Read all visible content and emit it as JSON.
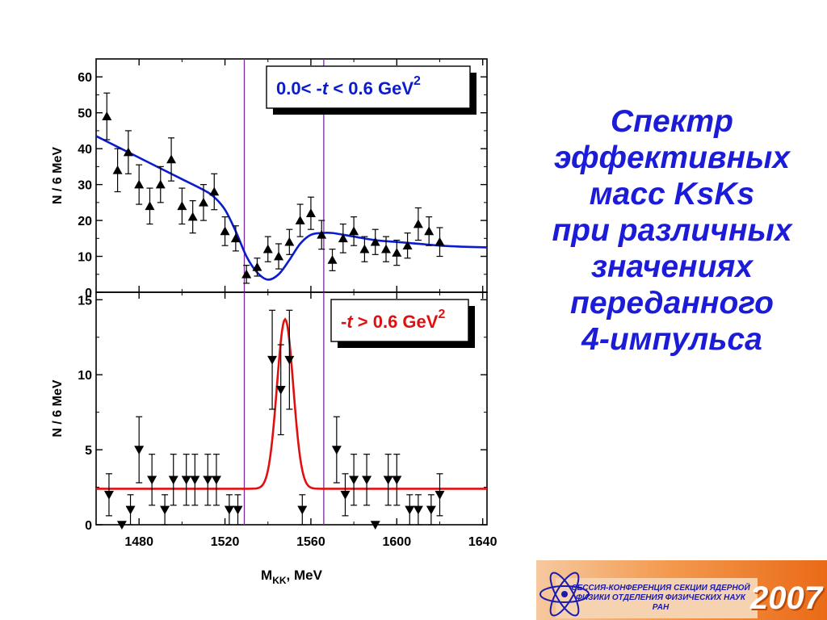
{
  "chart_data": [
    {
      "type": "scatter",
      "panel": "top",
      "title": "",
      "box_label": {
        "prefix": "0.0< -",
        "t": "t",
        "suffix": " < 0.6 GeV",
        "sup": "2"
      },
      "xlabel": "",
      "ylabel": "N / 6 MeV",
      "xlim": [
        1460,
        1642
      ],
      "ylim": [
        0,
        65
      ],
      "yticks": [
        "0",
        "10",
        "20",
        "30",
        "40",
        "50",
        "60"
      ],
      "vertical_lines": [
        1529,
        1566
      ],
      "marker": "triangle-up",
      "fit_color": "#0a1ccc",
      "points": [
        {
          "x": 1465,
          "y": 49,
          "err": 6.5
        },
        {
          "x": 1470,
          "y": 34,
          "err": 6
        },
        {
          "x": 1475,
          "y": 39,
          "err": 6
        },
        {
          "x": 1480,
          "y": 30,
          "err": 5.5
        },
        {
          "x": 1485,
          "y": 24,
          "err": 5
        },
        {
          "x": 1490,
          "y": 30,
          "err": 5
        },
        {
          "x": 1495,
          "y": 37,
          "err": 6
        },
        {
          "x": 1500,
          "y": 24,
          "err": 5
        },
        {
          "x": 1505,
          "y": 21,
          "err": 4.5
        },
        {
          "x": 1510,
          "y": 25,
          "err": 5
        },
        {
          "x": 1515,
          "y": 28,
          "err": 5
        },
        {
          "x": 1520,
          "y": 17,
          "err": 4
        },
        {
          "x": 1525,
          "y": 15,
          "err": 3.5
        },
        {
          "x": 1530,
          "y": 5,
          "err": 2.5
        },
        {
          "x": 1535,
          "y": 7,
          "err": 2.5
        },
        {
          "x": 1540,
          "y": 12,
          "err": 3.5
        },
        {
          "x": 1545,
          "y": 10,
          "err": 3.5
        },
        {
          "x": 1550,
          "y": 14,
          "err": 3.5
        },
        {
          "x": 1555,
          "y": 20,
          "err": 4.5
        },
        {
          "x": 1560,
          "y": 22,
          "err": 4.5
        },
        {
          "x": 1565,
          "y": 16,
          "err": 4
        },
        {
          "x": 1570,
          "y": 9,
          "err": 3
        },
        {
          "x": 1575,
          "y": 15,
          "err": 4
        },
        {
          "x": 1580,
          "y": 17,
          "err": 4
        },
        {
          "x": 1585,
          "y": 12,
          "err": 3.5
        },
        {
          "x": 1590,
          "y": 14,
          "err": 3.5
        },
        {
          "x": 1595,
          "y": 12,
          "err": 3.5
        },
        {
          "x": 1600,
          "y": 11,
          "err": 3.5
        },
        {
          "x": 1605,
          "y": 13,
          "err": 3.5
        },
        {
          "x": 1610,
          "y": 19,
          "err": 4.5
        },
        {
          "x": 1615,
          "y": 17,
          "err": 4
        },
        {
          "x": 1620,
          "y": 14,
          "err": 4
        }
      ],
      "fit": [
        [
          1460,
          43.5
        ],
        [
          1470,
          40.5
        ],
        [
          1480,
          37.5
        ],
        [
          1490,
          34.5
        ],
        [
          1500,
          31.5
        ],
        [
          1510,
          28.5
        ],
        [
          1515,
          26.5
        ],
        [
          1520,
          23
        ],
        [
          1525,
          17
        ],
        [
          1530,
          10
        ],
        [
          1535,
          5.5
        ],
        [
          1540,
          3.5
        ],
        [
          1545,
          5
        ],
        [
          1550,
          9
        ],
        [
          1555,
          13.5
        ],
        [
          1560,
          16
        ],
        [
          1565,
          16.5
        ],
        [
          1570,
          16.5
        ],
        [
          1580,
          15.5
        ],
        [
          1590,
          14.5
        ],
        [
          1600,
          14
        ],
        [
          1610,
          13.5
        ],
        [
          1620,
          13
        ],
        [
          1630,
          12.7
        ],
        [
          1642,
          12.5
        ]
      ]
    },
    {
      "type": "scatter",
      "panel": "bottom",
      "title": "",
      "box_label": {
        "prefix": "-",
        "t": "t",
        "suffix": " > 0.6 GeV",
        "sup": "2"
      },
      "xlabel": "MKK, MeV",
      "xlabel_parts": {
        "main": "M",
        "sub": "KK",
        "rest": ", MeV"
      },
      "ylabel": "N / 6 MeV",
      "xlim": [
        1460,
        1642
      ],
      "ylim": [
        0,
        15.5
      ],
      "yticks": [
        "0",
        "5",
        "10",
        "15"
      ],
      "xticks": [
        "1480",
        "1520",
        "1560",
        "1600",
        "1640"
      ],
      "vertical_lines": [
        1529,
        1566
      ],
      "marker": "triangle-down",
      "fit_color": "#e01010",
      "fit_peak": {
        "mean": 1548,
        "sigma": 3.8,
        "amplitude": 11.3,
        "baseline": 2.4
      },
      "points": [
        {
          "x": 1466,
          "y": 2,
          "err": 1.4
        },
        {
          "x": 1472,
          "y": 0,
          "err": 0
        },
        {
          "x": 1476,
          "y": 1,
          "err": 1
        },
        {
          "x": 1480,
          "y": 5,
          "err": 2.2
        },
        {
          "x": 1486,
          "y": 3,
          "err": 1.7
        },
        {
          "x": 1492,
          "y": 1,
          "err": 1
        },
        {
          "x": 1496,
          "y": 3,
          "err": 1.7
        },
        {
          "x": 1502,
          "y": 3,
          "err": 1.7
        },
        {
          "x": 1506,
          "y": 3,
          "err": 1.7
        },
        {
          "x": 1512,
          "y": 3,
          "err": 1.7
        },
        {
          "x": 1516,
          "y": 3,
          "err": 1.7
        },
        {
          "x": 1522,
          "y": 1,
          "err": 1
        },
        {
          "x": 1526,
          "y": 1,
          "err": 1
        },
        {
          "x": 1542,
          "y": 11,
          "err": 3.3
        },
        {
          "x": 1546,
          "y": 9,
          "err": 3
        },
        {
          "x": 1550,
          "y": 11,
          "err": 3.3
        },
        {
          "x": 1556,
          "y": 1,
          "err": 1
        },
        {
          "x": 1572,
          "y": 5,
          "err": 2.2
        },
        {
          "x": 1576,
          "y": 2,
          "err": 1.4
        },
        {
          "x": 1580,
          "y": 3,
          "err": 1.7
        },
        {
          "x": 1586,
          "y": 3,
          "err": 1.7
        },
        {
          "x": 1590,
          "y": 0,
          "err": 0
        },
        {
          "x": 1596,
          "y": 3,
          "err": 1.7
        },
        {
          "x": 1600,
          "y": 3,
          "err": 1.7
        },
        {
          "x": 1606,
          "y": 1,
          "err": 1
        },
        {
          "x": 1610,
          "y": 1,
          "err": 1
        },
        {
          "x": 1616,
          "y": 1,
          "err": 1
        },
        {
          "x": 1620,
          "y": 2,
          "err": 1.4
        }
      ]
    }
  ],
  "slide": {
    "title_lines": [
      "Спектр",
      "эффективных",
      "масс KsKs",
      "при различных",
      "значениях",
      "переданного",
      "4-импульса"
    ],
    "title_color": "#1c1cd8"
  },
  "banner": {
    "lines": [
      "СЕССИЯ-КОНФЕРЕНЦИЯ СЕКЦИИ ЯДЕРНОЙ",
      "ФИЗИКИ ОТДЕЛЕНИЯ ФИЗИЧЕСКИХ НАУК",
      "РАН"
    ],
    "year": "2007",
    "icon": "atom-icon"
  }
}
